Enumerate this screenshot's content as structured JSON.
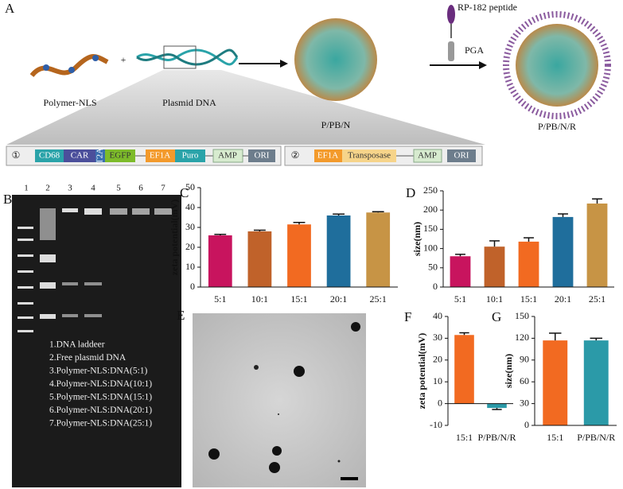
{
  "figure": {
    "panels": [
      "A",
      "B",
      "C",
      "D",
      "E",
      "F",
      "G"
    ],
    "schematic": {
      "polymer": "Polymer-NLS",
      "plus": "+",
      "plasmid": "Plasmid DNA",
      "complex": "P/PB/N",
      "peptide": "RP-182 peptide",
      "pga": "PGA",
      "final": "P/PB/N/R",
      "construct1": [
        "①",
        "CD68",
        "CAR",
        "T2A",
        "EGFP",
        "EF1A",
        "Puro",
        "AMP",
        "ORI"
      ],
      "construct2": [
        "②",
        "EF1A",
        "Transposase",
        "AMP",
        "ORI"
      ]
    },
    "gel": {
      "lanes": [
        "1",
        "2",
        "3",
        "4",
        "5",
        "6",
        "7"
      ],
      "legend": [
        "1.DNA laddeer",
        "2.Free plasmid DNA",
        "3.Polymer-NLS:DNA(5:1)",
        "4.Polymer-NLS:DNA(10:1)",
        "5.Polymer-NLS:DNA(15:1)",
        "6.Polymer-NLS:DNA(20:1)",
        "7.Polymer-NLS:DNA(25:1)"
      ]
    }
  },
  "chart_data": [
    {
      "type": "bar",
      "ylabel": "zeta potential(mV)",
      "categories": [
        "5:1",
        "10:1",
        "15:1",
        "20:1",
        "25:1"
      ],
      "values": [
        26,
        28,
        31.5,
        36,
        37.5
      ],
      "errors": [
        0.5,
        0.6,
        1,
        0.7,
        0.4
      ],
      "colors": [
        "#c8145e",
        "#c0622a",
        "#f26a21",
        "#1f6e9c",
        "#c79445"
      ],
      "ylim": [
        0,
        50
      ],
      "yticks": [
        0,
        10,
        20,
        30,
        40,
        50
      ]
    },
    {
      "type": "bar",
      "ylabel": "size(nm)",
      "categories": [
        "5:1",
        "10:1",
        "15:1",
        "20:1",
        "25:1"
      ],
      "values": [
        80,
        105,
        118,
        182,
        217
      ],
      "errors": [
        5,
        15,
        10,
        8,
        12
      ],
      "colors": [
        "#c8145e",
        "#c0622a",
        "#f26a21",
        "#1f6e9c",
        "#c79445"
      ],
      "ylim": [
        0,
        250
      ],
      "yticks": [
        0,
        50,
        100,
        150,
        200,
        250
      ]
    },
    {
      "type": "bar",
      "ylabel": "zeta potential(mV)",
      "categories": [
        "15:1",
        "P/PB/N/R"
      ],
      "values": [
        31.5,
        -2
      ],
      "errors": [
        1,
        0.7
      ],
      "colors": [
        "#f26a21",
        "#2b9aa8"
      ],
      "ylim": [
        -10,
        40
      ],
      "yticks": [
        -10,
        0,
        10,
        20,
        30,
        40
      ]
    },
    {
      "type": "bar",
      "ylabel": "size(nm)",
      "categories": [
        "15:1",
        "P/PB/N/R"
      ],
      "values": [
        117,
        117
      ],
      "errors": [
        10,
        3
      ],
      "colors": [
        "#f26a21",
        "#2b9aa8"
      ],
      "ylim": [
        0,
        150
      ],
      "yticks": [
        0,
        30,
        60,
        90,
        120,
        150
      ]
    }
  ]
}
